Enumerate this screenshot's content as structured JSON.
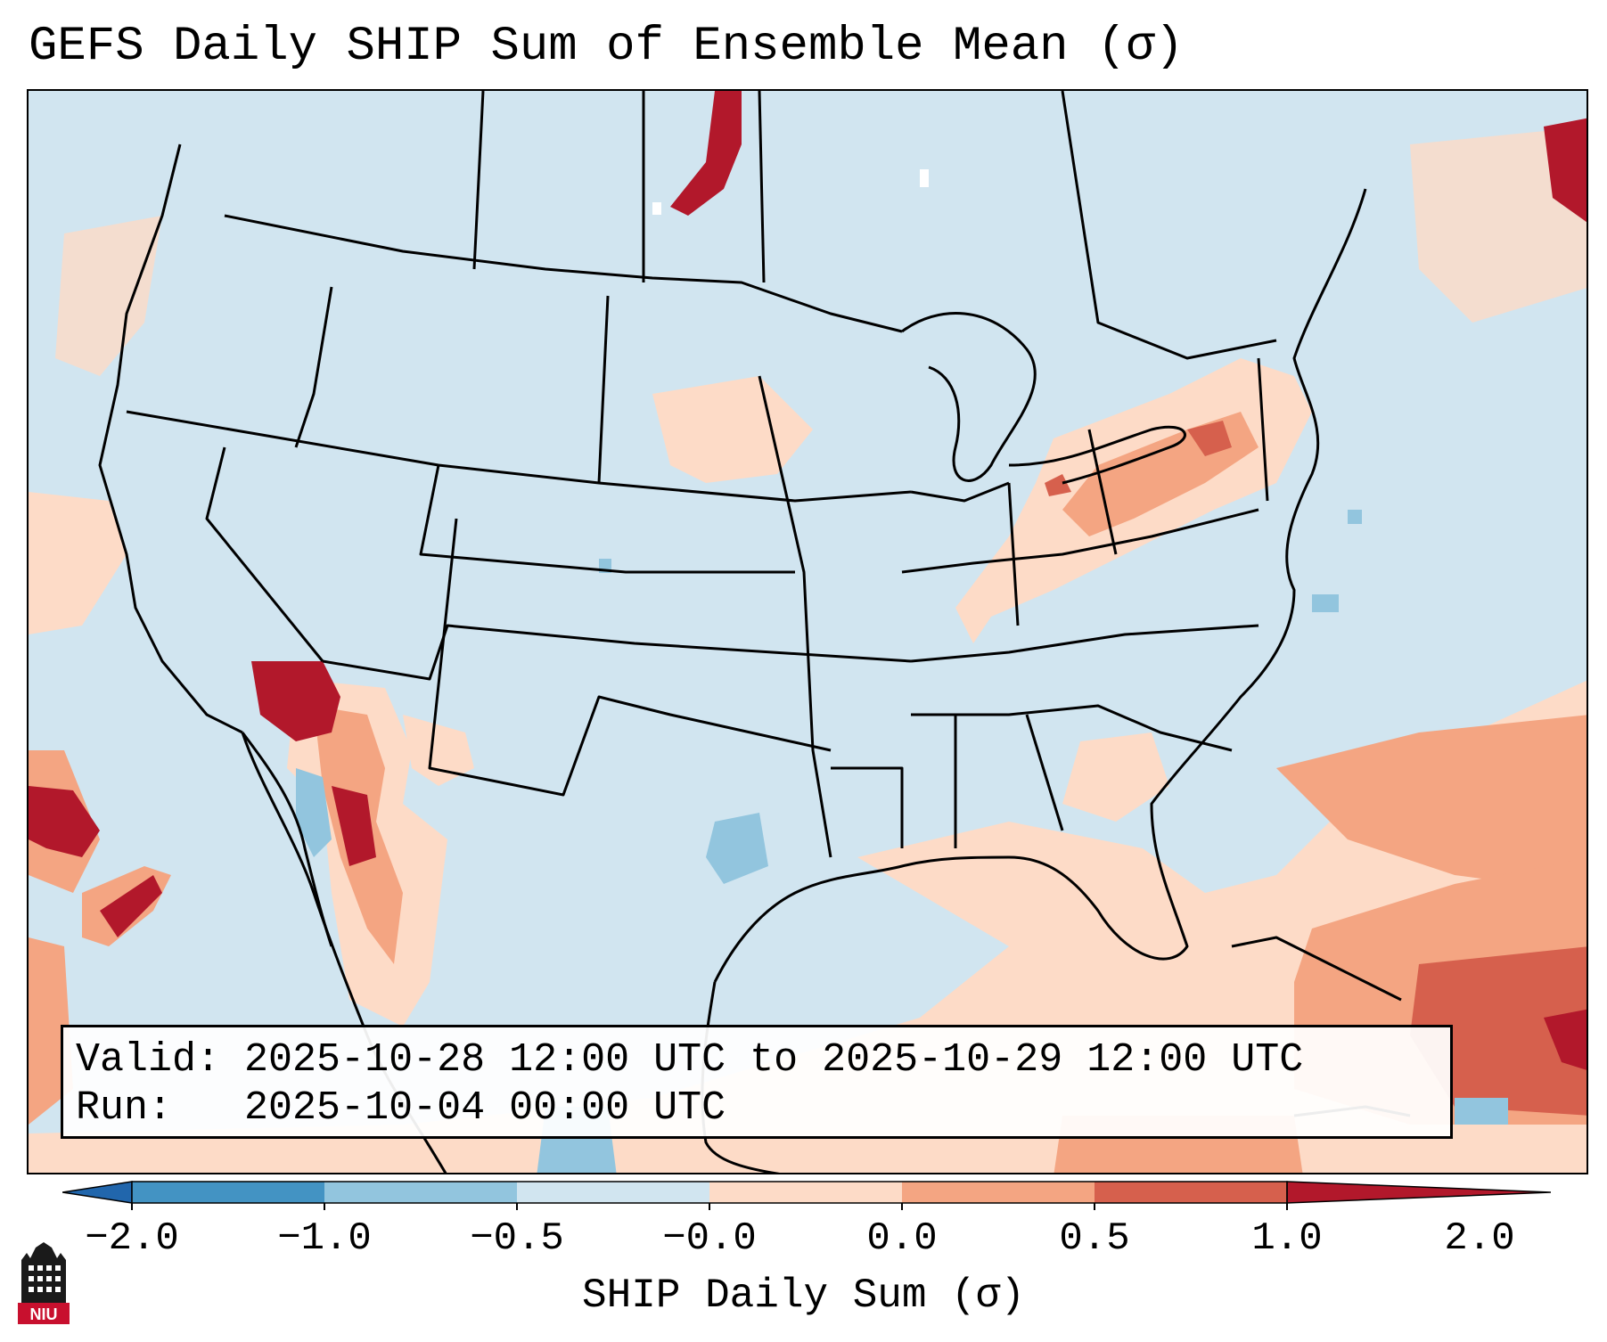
{
  "title": "GEFS Daily SHIP Sum of Ensemble Mean (σ)",
  "info": {
    "valid_label": "Valid:",
    "valid_value": "2025-10-28 12:00 UTC to 2025-10-29 12:00 UTC",
    "run_label": "Run:",
    "run_value": "2025-10-04 00:00 UTC"
  },
  "colorbar": {
    "label": "SHIP Daily Sum (σ)",
    "ticks": [
      "−2.0",
      "−1.0",
      "−0.5",
      "−0.0",
      "0.0",
      "0.5",
      "1.0",
      "2.0"
    ],
    "colors": [
      "#4393c3",
      "#92c5de",
      "#d1e5f0",
      "#fddbc7",
      "#f4a582",
      "#d6604d"
    ],
    "extend_low_color": "#2166ac",
    "extend_high_color": "#b2182b"
  },
  "logo": {
    "text": "NIU"
  }
}
